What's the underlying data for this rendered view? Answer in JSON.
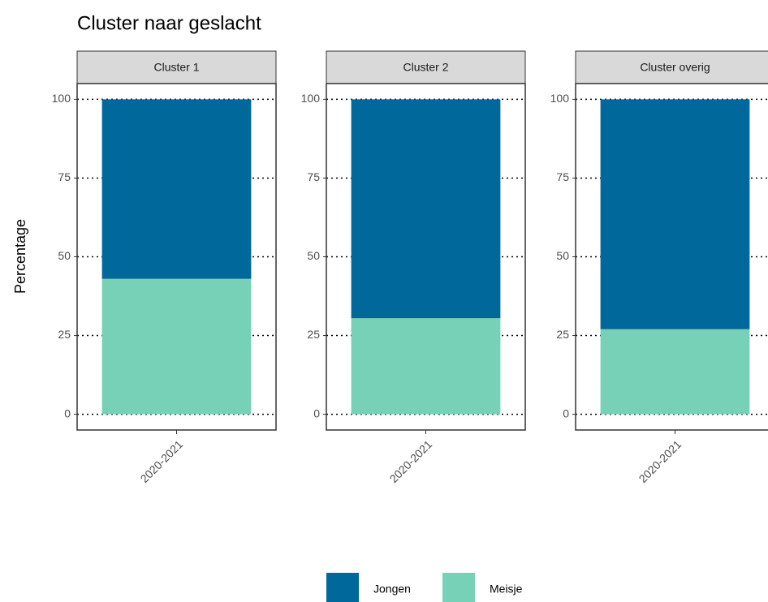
{
  "title": "Cluster naar geslacht",
  "y_label": "Percentage",
  "chart_data": [
    {
      "type": "bar",
      "title": "Cluster 1",
      "categories": [
        "2020-2021"
      ],
      "series": [
        {
          "name": "Jongen",
          "color": "#00689a",
          "values": [
            57
          ]
        },
        {
          "name": "Meisje",
          "color": "#76d1b6",
          "values": [
            43
          ]
        }
      ],
      "ylim": [
        -5,
        105
      ],
      "yticks": [
        0,
        25,
        50,
        75,
        100
      ],
      "grid": true
    },
    {
      "type": "bar",
      "title": "Cluster 2",
      "categories": [
        "2020-2021"
      ],
      "series": [
        {
          "name": "Jongen",
          "color": "#00689a",
          "values": [
            69.5
          ]
        },
        {
          "name": "Meisje",
          "color": "#76d1b6",
          "values": [
            30.5
          ]
        }
      ],
      "ylim": [
        -5,
        105
      ],
      "yticks": [
        0,
        25,
        50,
        75,
        100
      ],
      "grid": true
    },
    {
      "type": "bar",
      "title": "Cluster overig",
      "categories": [
        "2020-2021"
      ],
      "series": [
        {
          "name": "Jongen",
          "color": "#00689a",
          "values": [
            73
          ]
        },
        {
          "name": "Meisje",
          "color": "#76d1b6",
          "values": [
            27
          ]
        }
      ],
      "ylim": [
        -5,
        105
      ],
      "yticks": [
        0,
        25,
        50,
        75,
        100
      ],
      "grid": true
    }
  ]
}
